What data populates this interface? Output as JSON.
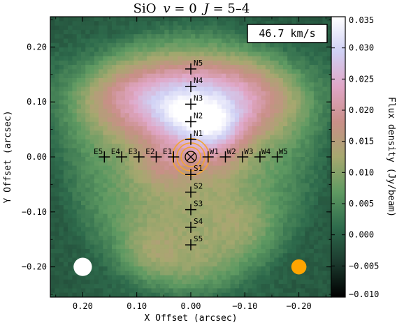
{
  "chart_data": {
    "type": "heatmap",
    "title": "SiO v = 0 J = 5–4",
    "title_parts": {
      "molecule": "SiO",
      "v_sym": "v",
      "v_rest": " = 0",
      "j_sym": "J",
      "j_rest": " = 5–4"
    },
    "velocity_label": "46.7 km/s",
    "xlabel": "X Offset (arcsec)",
    "ylabel": "Y Offset (arcsec)",
    "colorbar_label": "Flux density (Jy/beam)",
    "xlim": [
      0.26,
      -0.26
    ],
    "ylim": [
      -0.255,
      0.255
    ],
    "xticks": [
      0.2,
      0.1,
      0.0,
      -0.1,
      -0.2
    ],
    "xtick_labels": [
      "0.20",
      "0.10",
      "0.00",
      "−0.10",
      "−0.20"
    ],
    "yticks": [
      0.2,
      0.1,
      0.0,
      -0.1,
      -0.2
    ],
    "ytick_labels": [
      "0.20",
      "0.10",
      "0.00",
      "−0.10",
      "−0.20"
    ],
    "colorbar_range": [
      -0.01,
      0.035
    ],
    "colorbar_ticks": [
      0.035,
      0.03,
      0.025,
      0.02,
      0.015,
      0.01,
      0.005,
      0.0,
      -0.005,
      -0.01
    ],
    "colorbar_tick_labels": [
      "0.035",
      "0.030",
      "0.025",
      "0.020",
      "0.015",
      "0.010",
      "0.005",
      "0.000",
      "−0.005",
      "−0.010"
    ],
    "colormap_stops": [
      "#000000",
      "#1c3a2e",
      "#2e6b4c",
      "#5f9a62",
      "#a6a86f",
      "#c98f88",
      "#e0a6c6",
      "#cfd0f4",
      "#ffffff"
    ],
    "emission_regions": [
      {
        "x": 0.08,
        "y": 0.11,
        "sx": 0.1,
        "sy": 0.05,
        "amp": 0.012
      },
      {
        "x": -0.08,
        "y": 0.11,
        "sx": 0.1,
        "sy": 0.05,
        "amp": 0.012
      },
      {
        "x": 0.0,
        "y": 0.1,
        "sx": 0.16,
        "sy": 0.07,
        "amp": 0.006
      },
      {
        "x": -0.04,
        "y": 0.055,
        "sx": 0.04,
        "sy": 0.03,
        "amp": 0.012
      },
      {
        "x": 0.02,
        "y": 0.07,
        "sx": 0.04,
        "sy": 0.03,
        "amp": 0.006
      },
      {
        "x": 0.05,
        "y": -0.01,
        "sx": 0.035,
        "sy": 0.03,
        "amp": 0.006
      },
      {
        "x": -0.04,
        "y": 0.0,
        "sx": 0.04,
        "sy": 0.03,
        "amp": 0.005
      },
      {
        "x": 0.01,
        "y": -0.1,
        "sx": 0.11,
        "sy": 0.11,
        "amp": 0.006
      },
      {
        "x": 0.08,
        "y": -0.17,
        "sx": 0.035,
        "sy": 0.035,
        "amp": 0.004
      },
      {
        "x": -0.1,
        "y": -0.13,
        "sx": 0.04,
        "sy": 0.04,
        "amp": 0.004
      },
      {
        "x": 0.0,
        "y": -0.2,
        "sx": 0.06,
        "sy": 0.035,
        "amp": 0.004
      }
    ],
    "background_level": 0.006,
    "cross_markers": [
      {
        "label": "N5",
        "x": 0.0,
        "y": 0.16
      },
      {
        "label": "N4",
        "x": 0.0,
        "y": 0.128
      },
      {
        "label": "N3",
        "x": 0.0,
        "y": 0.096
      },
      {
        "label": "N2",
        "x": 0.0,
        "y": 0.064
      },
      {
        "label": "N1",
        "x": 0.0,
        "y": 0.032
      },
      {
        "label": "S1",
        "x": 0.0,
        "y": -0.032
      },
      {
        "label": "S2",
        "x": 0.0,
        "y": -0.064
      },
      {
        "label": "S3",
        "x": 0.0,
        "y": -0.096
      },
      {
        "label": "S4",
        "x": 0.0,
        "y": -0.128
      },
      {
        "label": "S5",
        "x": 0.0,
        "y": -0.16
      },
      {
        "label": "E5",
        "x": 0.16,
        "y": 0.0
      },
      {
        "label": "E4",
        "x": 0.128,
        "y": 0.0
      },
      {
        "label": "E3",
        "x": 0.096,
        "y": 0.0
      },
      {
        "label": "E2",
        "x": 0.064,
        "y": 0.0
      },
      {
        "label": "E1",
        "x": 0.032,
        "y": 0.0
      },
      {
        "label": "W1",
        "x": -0.032,
        "y": 0.0
      },
      {
        "label": "W2",
        "x": -0.064,
        "y": 0.0
      },
      {
        "label": "W3",
        "x": -0.096,
        "y": 0.0
      },
      {
        "label": "W4",
        "x": -0.128,
        "y": 0.0
      },
      {
        "label": "W5",
        "x": -0.16,
        "y": 0.0
      }
    ],
    "center_marker": {
      "x": 0.0,
      "y": 0.0,
      "symbol": "x-circle"
    },
    "center_contours": {
      "x": 0.0,
      "y": 0.0,
      "radii": [
        0.01,
        0.018,
        0.026,
        0.034
      ],
      "color": "#f3a432"
    },
    "beams": [
      {
        "x": 0.2,
        "y": -0.2,
        "r": 0.017,
        "color": "#ffffff"
      },
      {
        "x": -0.2,
        "y": -0.2,
        "r": 0.014,
        "color": "#ffa500"
      }
    ],
    "grid": false
  }
}
